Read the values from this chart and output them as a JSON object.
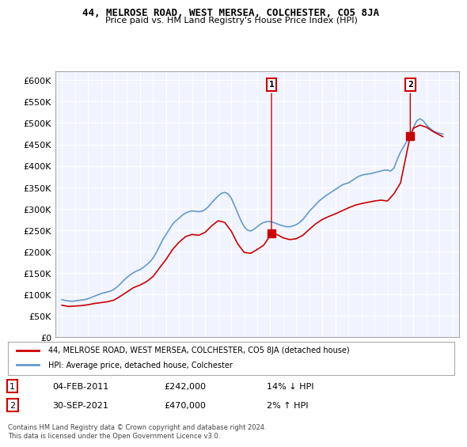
{
  "title": "44, MELROSE ROAD, WEST MERSEA, COLCHESTER, CO5 8JA",
  "subtitle": "Price paid vs. HM Land Registry's House Price Index (HPI)",
  "ylabel_ticks": [
    "£0",
    "£50K",
    "£100K",
    "£150K",
    "£200K",
    "£250K",
    "£300K",
    "£350K",
    "£400K",
    "£450K",
    "£500K",
    "£550K",
    "£600K"
  ],
  "ytick_values": [
    0,
    50000,
    100000,
    150000,
    200000,
    250000,
    300000,
    350000,
    400000,
    450000,
    500000,
    550000,
    600000
  ],
  "ylim": [
    0,
    620000
  ],
  "red_line_color": "#cc0000",
  "blue_line_color": "#6699cc",
  "background_color": "#ffffff",
  "plot_bg_color": "#f0f4ff",
  "grid_color": "#ffffff",
  "sale1_date": "04-FEB-2011",
  "sale1_price": 242000,
  "sale1_note": "14% ↓ HPI",
  "sale1_year": 2011.09,
  "sale2_date": "30-SEP-2021",
  "sale2_price": 470000,
  "sale2_note": "2% ↑ HPI",
  "sale2_year": 2021.75,
  "legend_label1": "44, MELROSE ROAD, WEST MERSEA, COLCHESTER, CO5 8JA (detached house)",
  "legend_label2": "HPI: Average price, detached house, Colchester",
  "footnote": "Contains HM Land Registry data © Crown copyright and database right 2024.\nThis data is licensed under the Open Government Licence v3.0.",
  "hpi_years": [
    1995.0,
    1995.25,
    1995.5,
    1995.75,
    1996.0,
    1996.25,
    1996.5,
    1996.75,
    1997.0,
    1997.25,
    1997.5,
    1997.75,
    1998.0,
    1998.25,
    1998.5,
    1998.75,
    1999.0,
    1999.25,
    1999.5,
    1999.75,
    2000.0,
    2000.25,
    2000.5,
    2000.75,
    2001.0,
    2001.25,
    2001.5,
    2001.75,
    2002.0,
    2002.25,
    2002.5,
    2002.75,
    2003.0,
    2003.25,
    2003.5,
    2003.75,
    2004.0,
    2004.25,
    2004.5,
    2004.75,
    2005.0,
    2005.25,
    2005.5,
    2005.75,
    2006.0,
    2006.25,
    2006.5,
    2006.75,
    2007.0,
    2007.25,
    2007.5,
    2007.75,
    2008.0,
    2008.25,
    2008.5,
    2008.75,
    2009.0,
    2009.25,
    2009.5,
    2009.75,
    2010.0,
    2010.25,
    2010.5,
    2010.75,
    2011.0,
    2011.25,
    2011.5,
    2011.75,
    2012.0,
    2012.25,
    2012.5,
    2012.75,
    2013.0,
    2013.25,
    2013.5,
    2013.75,
    2014.0,
    2014.25,
    2014.5,
    2014.75,
    2015.0,
    2015.25,
    2015.5,
    2015.75,
    2016.0,
    2016.25,
    2016.5,
    2016.75,
    2017.0,
    2017.25,
    2017.5,
    2017.75,
    2018.0,
    2018.25,
    2018.5,
    2018.75,
    2019.0,
    2019.25,
    2019.5,
    2019.75,
    2020.0,
    2020.25,
    2020.5,
    2020.75,
    2021.0,
    2021.25,
    2021.5,
    2021.75,
    2022.0,
    2022.25,
    2022.5,
    2022.75,
    2023.0,
    2023.25,
    2023.5,
    2023.75,
    2024.0,
    2024.25
  ],
  "hpi_values": [
    88000,
    86000,
    85000,
    84000,
    85000,
    86000,
    87000,
    88000,
    90000,
    93000,
    96000,
    99000,
    102000,
    104000,
    106000,
    108000,
    112000,
    118000,
    125000,
    133000,
    140000,
    146000,
    151000,
    155000,
    158000,
    163000,
    169000,
    176000,
    185000,
    198000,
    213000,
    228000,
    240000,
    252000,
    264000,
    272000,
    278000,
    285000,
    290000,
    293000,
    295000,
    294000,
    293000,
    294000,
    298000,
    305000,
    314000,
    322000,
    330000,
    336000,
    338000,
    335000,
    325000,
    308000,
    290000,
    272000,
    258000,
    250000,
    248000,
    252000,
    258000,
    264000,
    268000,
    270000,
    270000,
    268000,
    265000,
    262000,
    260000,
    258000,
    258000,
    260000,
    263000,
    268000,
    275000,
    284000,
    294000,
    302000,
    310000,
    318000,
    324000,
    330000,
    335000,
    340000,
    345000,
    350000,
    355000,
    358000,
    360000,
    365000,
    370000,
    375000,
    378000,
    380000,
    381000,
    382000,
    384000,
    386000,
    388000,
    390000,
    390000,
    388000,
    395000,
    415000,
    432000,
    445000,
    458000,
    470000,
    490000,
    505000,
    510000,
    505000,
    495000,
    488000,
    482000,
    478000,
    476000,
    474000
  ],
  "red_years": [
    1995.0,
    1995.5,
    1996.0,
    1996.5,
    1997.0,
    1997.5,
    1998.0,
    1998.5,
    1999.0,
    1999.5,
    2000.0,
    2000.5,
    2001.0,
    2001.5,
    2002.0,
    2002.5,
    2003.0,
    2003.5,
    2004.0,
    2004.5,
    2005.0,
    2005.5,
    2006.0,
    2006.5,
    2007.0,
    2007.5,
    2008.0,
    2008.5,
    2009.0,
    2009.5,
    2010.0,
    2010.5,
    2011.09,
    2011.5,
    2012.0,
    2012.5,
    2013.0,
    2013.5,
    2014.0,
    2014.5,
    2015.0,
    2015.5,
    2016.0,
    2016.5,
    2017.0,
    2017.5,
    2018.0,
    2018.5,
    2019.0,
    2019.5,
    2020.0,
    2020.5,
    2021.0,
    2021.75,
    2022.0,
    2022.5,
    2023.0,
    2023.5,
    2024.0,
    2024.25
  ],
  "red_values": [
    75000,
    72000,
    73000,
    74000,
    76000,
    79000,
    81000,
    83000,
    87000,
    96000,
    106000,
    116000,
    122000,
    130000,
    142000,
    162000,
    182000,
    205000,
    222000,
    235000,
    240000,
    238000,
    245000,
    260000,
    272000,
    268000,
    248000,
    218000,
    198000,
    196000,
    205000,
    215000,
    242000,
    240000,
    232000,
    228000,
    230000,
    238000,
    252000,
    265000,
    275000,
    282000,
    288000,
    295000,
    302000,
    308000,
    312000,
    315000,
    318000,
    320000,
    318000,
    335000,
    360000,
    470000,
    488000,
    495000,
    490000,
    480000,
    472000,
    468000
  ]
}
